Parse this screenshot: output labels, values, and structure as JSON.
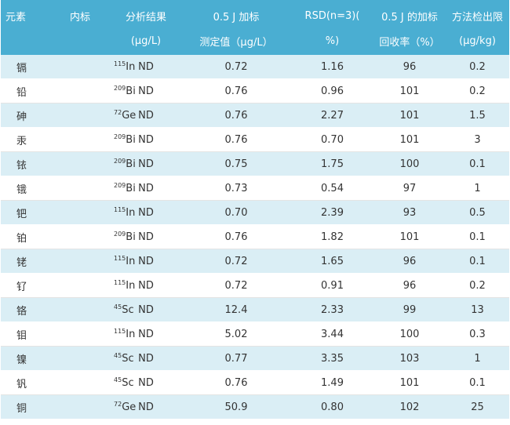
{
  "header": {
    "row1": [
      "元素",
      "内标",
      "分析结果",
      "0.5 J 加标",
      "RSD(n=3)(",
      "0.5 J 的加标",
      "方法检出限"
    ],
    "row2": [
      "",
      "",
      "(μg/L)",
      "测定值（μg/L）",
      "%)",
      "回收率（%）",
      "(μg/kg)"
    ]
  },
  "rows": [
    {
      "element": "镉",
      "mass": "115",
      "is": "In",
      "result": "ND",
      "measured": "0.72",
      "rsd": "1.16",
      "recovery": "96",
      "lod": "0.2"
    },
    {
      "element": "铅",
      "mass": "209",
      "is": "Bi",
      "result": "ND",
      "measured": "0.76",
      "rsd": "0.96",
      "recovery": "101",
      "lod": "0.2"
    },
    {
      "element": "砷",
      "mass": "72",
      "is": "Ge",
      "result": "ND",
      "measured": "0.76",
      "rsd": "2.27",
      "recovery": "101",
      "lod": "1.5"
    },
    {
      "element": "汞",
      "mass": "209",
      "is": "Bi",
      "result": "ND",
      "measured": "0.76",
      "rsd": "0.70",
      "recovery": "101",
      "lod": "3"
    },
    {
      "element": "铱",
      "mass": "209",
      "is": "Bi",
      "result": "ND",
      "measured": "0.75",
      "rsd": "1.75",
      "recovery": "100",
      "lod": "0.1"
    },
    {
      "element": "锇",
      "mass": "209",
      "is": "Bi",
      "result": "ND",
      "measured": "0.73",
      "rsd": "0.54",
      "recovery": "97",
      "lod": "1"
    },
    {
      "element": "钯",
      "mass": "115",
      "is": "In",
      "result": "ND",
      "measured": "0.70",
      "rsd": "2.39",
      "recovery": "93",
      "lod": "0.5"
    },
    {
      "element": "铂",
      "mass": "209",
      "is": "Bi",
      "result": "ND",
      "measured": "0.76",
      "rsd": "1.82",
      "recovery": "101",
      "lod": "0.1"
    },
    {
      "element": "铑",
      "mass": "115",
      "is": "In",
      "result": "ND",
      "measured": "0.72",
      "rsd": "1.65",
      "recovery": "96",
      "lod": "0.1"
    },
    {
      "element": "钌",
      "mass": "115",
      "is": "In",
      "result": "ND",
      "measured": "0.72",
      "rsd": "0.91",
      "recovery": "96",
      "lod": "0.2"
    },
    {
      "element": "铬",
      "mass": "45",
      "is": "Sc",
      "result": "ND",
      "measured": "12.4",
      "rsd": "2.33",
      "recovery": "99",
      "lod": "13"
    },
    {
      "element": "钼",
      "mass": "115",
      "is": "In",
      "result": "ND",
      "measured": "5.02",
      "rsd": "3.44",
      "recovery": "100",
      "lod": "0.3"
    },
    {
      "element": "镍",
      "mass": "45",
      "is": "Sc",
      "result": "ND",
      "measured": "0.77",
      "rsd": "3.35",
      "recovery": "103",
      "lod": "1"
    },
    {
      "element": "钒",
      "mass": "45",
      "is": "Sc",
      "result": "ND",
      "measured": "0.76",
      "rsd": "1.49",
      "recovery": "101",
      "lod": "0.1"
    },
    {
      "element": "铜",
      "mass": "72",
      "is": "Ge",
      "result": "ND",
      "measured": "50.9",
      "rsd": "0.80",
      "recovery": "102",
      "lod": "25"
    }
  ],
  "colors": {
    "header_bg": "#4aaed2",
    "stripe": "#daeef5"
  }
}
